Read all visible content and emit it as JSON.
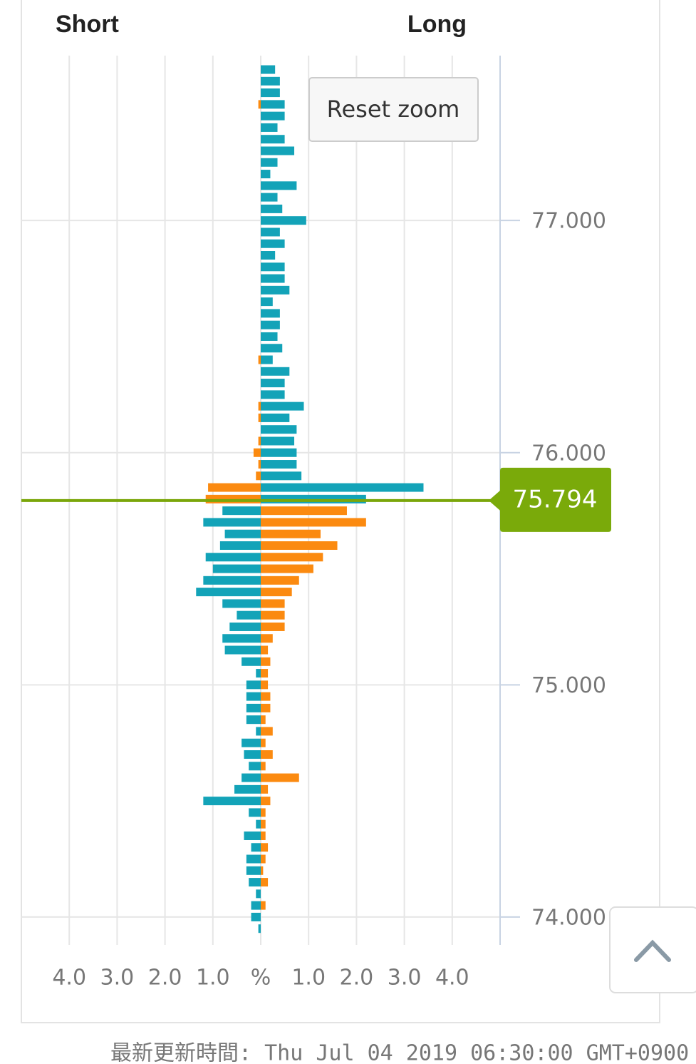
{
  "chart_data": {
    "type": "butterfly-bar",
    "left_label": "Short",
    "right_label": "Long",
    "x": [
      77.65,
      77.6,
      77.55,
      77.5,
      77.45,
      77.4,
      77.35,
      77.3,
      77.25,
      77.2,
      77.15,
      77.1,
      77.05,
      77.0,
      76.95,
      76.9,
      76.85,
      76.8,
      76.75,
      76.7,
      76.65,
      76.6,
      76.55,
      76.5,
      76.45,
      76.4,
      76.35,
      76.3,
      76.25,
      76.2,
      76.15,
      76.1,
      76.05,
      76.0,
      75.95,
      75.9,
      75.85,
      75.8,
      75.75,
      75.7,
      75.65,
      75.6,
      75.55,
      75.5,
      75.45,
      75.4,
      75.35,
      75.3,
      75.25,
      75.2,
      75.15,
      75.1,
      75.05,
      75.0,
      74.95,
      74.9,
      74.85,
      74.8,
      74.75,
      74.7,
      74.65,
      74.6,
      74.55,
      74.5,
      74.45,
      74.4,
      74.35,
      74.3,
      74.25,
      74.2,
      74.15,
      74.1,
      74.05,
      74.0,
      73.95
    ],
    "series": [
      {
        "color": "#13a3b8",
        "values": [
          0.3,
          0.4,
          0.4,
          0.5,
          0.5,
          0.35,
          0.5,
          0.7,
          0.35,
          0.2,
          0.75,
          0.35,
          0.45,
          0.95,
          0.4,
          0.5,
          0.3,
          0.5,
          0.5,
          0.6,
          0.25,
          0.4,
          0.4,
          0.35,
          0.45,
          0.25,
          0.6,
          0.5,
          0.5,
          0.9,
          0.6,
          0.75,
          0.7,
          0.75,
          0.75,
          0.85,
          3.4,
          2.2,
          -0.8,
          -1.2,
          -0.75,
          -0.85,
          -1.15,
          -1.0,
          -1.2,
          -1.35,
          -0.8,
          -0.5,
          -0.65,
          -0.8,
          -0.75,
          -0.4,
          -0.1,
          -0.3,
          -0.3,
          -0.3,
          -0.3,
          -0.1,
          -0.4,
          -0.35,
          -0.25,
          -0.4,
          -0.55,
          -1.2,
          -0.25,
          -0.1,
          -0.35,
          -0.2,
          -0.3,
          -0.3,
          -0.25,
          -0.1,
          -0.2,
          -0.2,
          -0.05
        ]
      },
      {
        "color": "#fb8a10",
        "values": [
          0,
          0,
          0,
          -0.05,
          0,
          0,
          0,
          0,
          0,
          0,
          0,
          0,
          0,
          0,
          0,
          0,
          0,
          0,
          0,
          0,
          0,
          0,
          0,
          0,
          0,
          -0.05,
          0,
          0,
          0,
          -0.05,
          -0.05,
          0,
          -0.05,
          -0.15,
          -0.05,
          -0.1,
          -1.1,
          -1.15,
          1.8,
          2.2,
          1.25,
          1.6,
          1.3,
          1.1,
          0.8,
          0.65,
          0.5,
          0.5,
          0.5,
          0.25,
          0.15,
          0.2,
          0.15,
          0.15,
          0.2,
          0.2,
          0.1,
          0.25,
          0.1,
          0.25,
          0.1,
          0.8,
          0.15,
          0.2,
          0.1,
          0.1,
          0.1,
          0.15,
          0.1,
          0.05,
          0.15,
          0,
          0.1,
          0,
          0
        ]
      }
    ],
    "xlim": [
      73.88,
      77.71
    ],
    "xticks": [
      {
        "value": 77,
        "label": "77.000"
      },
      {
        "value": 76,
        "label": "76.000"
      },
      {
        "value": 75,
        "label": "75.000"
      },
      {
        "value": 74,
        "label": "74.000"
      }
    ],
    "ylim": [
      -5,
      5
    ],
    "yticks": [
      {
        "value": -4,
        "label": "4.0"
      },
      {
        "value": -3,
        "label": "3.0"
      },
      {
        "value": -2,
        "label": "2.0"
      },
      {
        "value": -1,
        "label": "1.0"
      },
      {
        "value": 0,
        "label": "%"
      },
      {
        "value": 1,
        "label": "1.0"
      },
      {
        "value": 2,
        "label": "2.0"
      },
      {
        "value": 3,
        "label": "3.0"
      },
      {
        "value": 4,
        "label": "4.0"
      }
    ],
    "current_price": 75.794,
    "grid": true,
    "reset_button": "Reset zoom",
    "footer": "最新更新時間: Thu Jul 04 2019 06:30:00 GMT+0900"
  }
}
